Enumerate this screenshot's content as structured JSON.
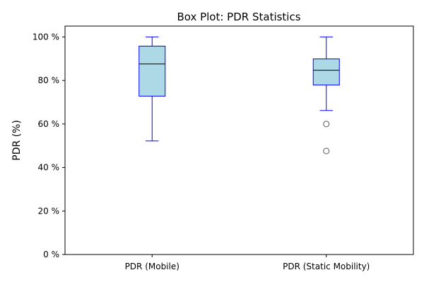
{
  "chart_data": {
    "type": "box",
    "title": "Box Plot: PDR Statistics",
    "xlabel": "",
    "ylabel": "PDR (%)",
    "ylim": [
      0,
      105
    ],
    "yticks": [
      0,
      20,
      40,
      60,
      80,
      100
    ],
    "ytick_labels": [
      "0 %",
      "20 %",
      "40 %",
      "60 %",
      "80 %",
      "100 %"
    ],
    "categories": [
      "PDR (Mobile)",
      "PDR (Static Mobility)"
    ],
    "boxes": [
      {
        "label": "PDR (Mobile)",
        "whisker_low": 52.2,
        "q1": 72.8,
        "median": 87.6,
        "q3": 95.8,
        "whisker_high": 100,
        "outliers": []
      },
      {
        "label": "PDR (Static Mobility)",
        "whisker_low": 66.2,
        "q1": 77.9,
        "median": 84.7,
        "q3": 89.9,
        "whisker_high": 100,
        "outliers": [
          60.0,
          47.6
        ]
      }
    ],
    "grid": false,
    "colors": {
      "box_fill": "#add8e6",
      "box_edge": "#0000ff",
      "median": "#000000",
      "outlier_edge": "#555555"
    }
  }
}
